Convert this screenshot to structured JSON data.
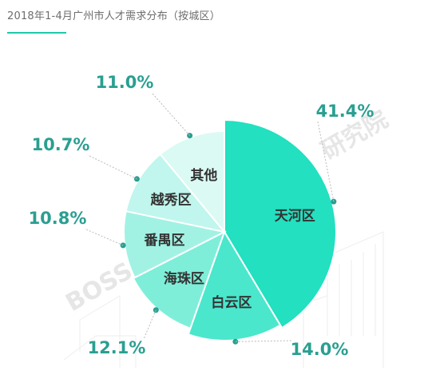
{
  "title": "2018年1-4月广州市人才需求分布（按城区）",
  "colors": {
    "accent": "#1fc9a8",
    "label": "#2a9f91"
  },
  "chart_data": {
    "type": "pie",
    "title": "2018年1-4月广州市人才需求分布（按城区）",
    "slices": [
      {
        "label": "天河区",
        "value": 41.4,
        "pct_text": "41.4%",
        "color": "#22e0c0"
      },
      {
        "label": "白云区",
        "value": 14.0,
        "pct_text": "14.0%",
        "color": "#4ae7cc"
      },
      {
        "label": "海珠区",
        "value": 12.1,
        "pct_text": "12.1%",
        "color": "#7feed9"
      },
      {
        "label": "番禺区",
        "value": 10.8,
        "pct_text": "10.8%",
        "color": "#a2f2e4"
      },
      {
        "label": "越秀区",
        "value": 10.7,
        "pct_text": "10.7%",
        "color": "#c0f6ed"
      },
      {
        "label": "其他",
        "value": 11.0,
        "pct_text": "11.0%",
        "color": "#dcfaf4"
      }
    ]
  }
}
